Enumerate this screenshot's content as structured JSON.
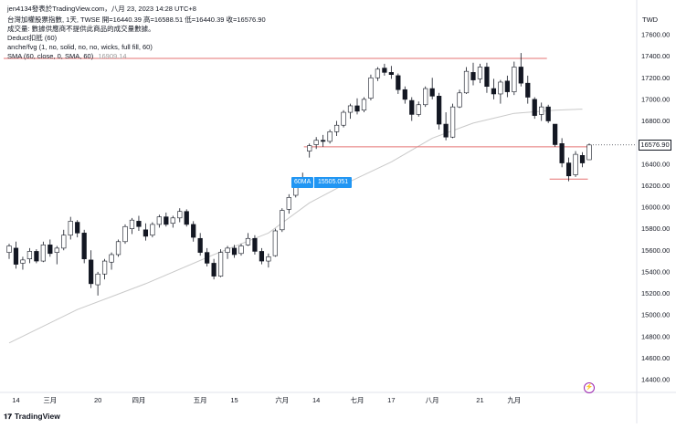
{
  "header": {
    "line1": "jen4134發表於TradingView.com，八月 23, 2023 14:28 UTC+8",
    "line2": "台灣加權股票指數, 1天, TWSE  開=16440.39  高=16588.51  低=16440.39  收=16576.90",
    "line3": "成交量: 數據供應商不提供此商品的成交量數據。",
    "line4": "Deduct扣抵 (60)",
    "line5": "anche/fvg (1, no, solid, no, no, wicks, full fill, 60)",
    "line6_label": "SMA (60, close, 0, SMA, 60)",
    "line6_value": "16909.14"
  },
  "currency": "TWD",
  "ma_label": "60MA",
  "ma_value": "15505.051",
  "last_price_tag": "16576.90",
  "footer_brand": "TradingView",
  "colors": {
    "up": "#ffffff",
    "down": "#131722",
    "wick": "#131722",
    "sma": "#c9c9c9",
    "hline": "#e57373",
    "accent": "#2196f3"
  },
  "chart_data": {
    "type": "candlestick",
    "ylim": [
      14300,
      17700
    ],
    "yticks": [
      17600,
      17400,
      17200,
      17000,
      16800,
      16600,
      16400,
      16200,
      16000,
      15800,
      15600,
      15400,
      15200,
      15000,
      14800,
      14600,
      14400
    ],
    "ytick_labels": [
      "17600.00",
      "17400.00",
      "17200.00",
      "17000.00",
      "16800.00",
      "16600.00",
      "16400.00",
      "16200.00",
      "16000.00",
      "15800.00",
      "15600.00",
      "15400.00",
      "15200.00",
      "15000.00",
      "14800.00",
      "14600.00",
      "14400.00"
    ],
    "xlabels": [
      {
        "i": 1,
        "label": "14"
      },
      {
        "i": 6,
        "label": "三月"
      },
      {
        "i": 13,
        "label": "20"
      },
      {
        "i": 19,
        "label": "四月"
      },
      {
        "i": 28,
        "label": "五月"
      },
      {
        "i": 33,
        "label": "15"
      },
      {
        "i": 40,
        "label": "六月"
      },
      {
        "i": 45,
        "label": "14"
      },
      {
        "i": 51,
        "label": "七月"
      },
      {
        "i": 56,
        "label": "17"
      },
      {
        "i": 62,
        "label": "八月"
      },
      {
        "i": 69,
        "label": "21"
      },
      {
        "i": 74,
        "label": "九月"
      }
    ],
    "candles": [
      [
        15580,
        15660,
        15520,
        15640
      ],
      [
        15620,
        15680,
        15430,
        15470
      ],
      [
        15480,
        15540,
        15420,
        15510
      ],
      [
        15520,
        15620,
        15480,
        15590
      ],
      [
        15590,
        15610,
        15480,
        15500
      ],
      [
        15500,
        15680,
        15490,
        15650
      ],
      [
        15650,
        15700,
        15540,
        15570
      ],
      [
        15580,
        15640,
        15470,
        15620
      ],
      [
        15620,
        15790,
        15600,
        15740
      ],
      [
        15740,
        15910,
        15700,
        15870
      ],
      [
        15860,
        15880,
        15720,
        15760
      ],
      [
        15760,
        15790,
        15480,
        15520
      ],
      [
        15510,
        15600,
        15250,
        15290
      ],
      [
        15280,
        15400,
        15180,
        15380
      ],
      [
        15380,
        15520,
        15330,
        15500
      ],
      [
        15490,
        15580,
        15420,
        15560
      ],
      [
        15560,
        15700,
        15540,
        15680
      ],
      [
        15680,
        15840,
        15660,
        15820
      ],
      [
        15800,
        15900,
        15750,
        15880
      ],
      [
        15870,
        15920,
        15780,
        15820
      ],
      [
        15790,
        15850,
        15690,
        15730
      ],
      [
        15740,
        15860,
        15720,
        15840
      ],
      [
        15840,
        15930,
        15810,
        15910
      ],
      [
        15910,
        15950,
        15820,
        15840
      ],
      [
        15850,
        15920,
        15810,
        15900
      ],
      [
        15900,
        15990,
        15860,
        15960
      ],
      [
        15960,
        15980,
        15820,
        15840
      ],
      [
        15840,
        15870,
        15680,
        15720
      ],
      [
        15710,
        15760,
        15550,
        15580
      ],
      [
        15580,
        15620,
        15450,
        15480
      ],
      [
        15480,
        15520,
        15330,
        15360
      ],
      [
        15360,
        15610,
        15350,
        15580
      ],
      [
        15580,
        15640,
        15520,
        15620
      ],
      [
        15620,
        15650,
        15530,
        15560
      ],
      [
        15570,
        15660,
        15550,
        15640
      ],
      [
        15650,
        15760,
        15640,
        15710
      ],
      [
        15710,
        15740,
        15560,
        15590
      ],
      [
        15590,
        15620,
        15470,
        15500
      ],
      [
        15500,
        15570,
        15440,
        15540
      ],
      [
        15550,
        15800,
        15540,
        15780
      ],
      [
        15790,
        15990,
        15770,
        15970
      ],
      [
        15980,
        16120,
        15940,
        16090
      ],
      [
        16110,
        16260,
        16090,
        16230
      ],
      [
        16250,
        16320,
        16190,
        16270
      ],
      [
        16520,
        16590,
        16460,
        16570
      ],
      [
        16580,
        16650,
        16540,
        16620
      ],
      [
        16620,
        16670,
        16560,
        16610
      ],
      [
        16610,
        16720,
        16590,
        16700
      ],
      [
        16700,
        16800,
        16660,
        16760
      ],
      [
        16760,
        16900,
        16740,
        16880
      ],
      [
        16880,
        16960,
        16820,
        16940
      ],
      [
        16940,
        17010,
        16860,
        16890
      ],
      [
        16900,
        17020,
        16880,
        17000
      ],
      [
        17010,
        17230,
        16990,
        17200
      ],
      [
        17200,
        17300,
        17170,
        17280
      ],
      [
        17290,
        17330,
        17220,
        17250
      ],
      [
        17250,
        17310,
        17190,
        17230
      ],
      [
        17220,
        17240,
        17050,
        17090
      ],
      [
        17090,
        17120,
        16960,
        17000
      ],
      [
        16990,
        17020,
        16800,
        16860
      ],
      [
        16860,
        16980,
        16840,
        16950
      ],
      [
        16950,
        17120,
        16930,
        17100
      ],
      [
        17100,
        17200,
        17000,
        17030
      ],
      [
        17030,
        17060,
        16720,
        16770
      ],
      [
        16770,
        16880,
        16620,
        16650
      ],
      [
        16650,
        16960,
        16640,
        16930
      ],
      [
        16930,
        17090,
        16920,
        17060
      ],
      [
        17060,
        17300,
        17050,
        17260
      ],
      [
        17250,
        17340,
        17130,
        17180
      ],
      [
        17190,
        17330,
        17150,
        17300
      ],
      [
        17300,
        17340,
        17060,
        17120
      ],
      [
        17100,
        17190,
        17000,
        17050
      ],
      [
        17050,
        17180,
        16960,
        17160
      ],
      [
        17170,
        17220,
        17020,
        17070
      ],
      [
        17070,
        17350,
        17040,
        17300
      ],
      [
        17300,
        17430,
        17120,
        17150
      ],
      [
        17150,
        17220,
        16960,
        17020
      ],
      [
        17000,
        17020,
        16820,
        16850
      ],
      [
        16860,
        16970,
        16800,
        16930
      ],
      [
        16930,
        16950,
        16780,
        16800
      ],
      [
        16770,
        16770,
        16560,
        16580
      ],
      [
        16590,
        16640,
        16370,
        16410
      ],
      [
        16410,
        16460,
        16240,
        16290
      ],
      [
        16300,
        16520,
        16280,
        16490
      ],
      [
        16480,
        16510,
        16370,
        16410
      ],
      [
        16440,
        16590,
        16440,
        16577
      ]
    ],
    "sma60": [
      [
        0,
        14740
      ],
      [
        10,
        15050
      ],
      [
        20,
        15290
      ],
      [
        30,
        15560
      ],
      [
        38,
        15760
      ],
      [
        44,
        16040
      ],
      [
        50,
        16240
      ],
      [
        56,
        16420
      ],
      [
        62,
        16640
      ],
      [
        68,
        16780
      ],
      [
        74,
        16870
      ],
      [
        80,
        16900
      ],
      [
        84,
        16909
      ]
    ],
    "hlines": [
      {
        "y": 17380,
        "i0": 0,
        "i1": 78
      },
      {
        "y": 16560,
        "i0": 44,
        "i1": 84
      },
      {
        "y": 16260,
        "i0": 80,
        "i1": 84
      }
    ]
  }
}
